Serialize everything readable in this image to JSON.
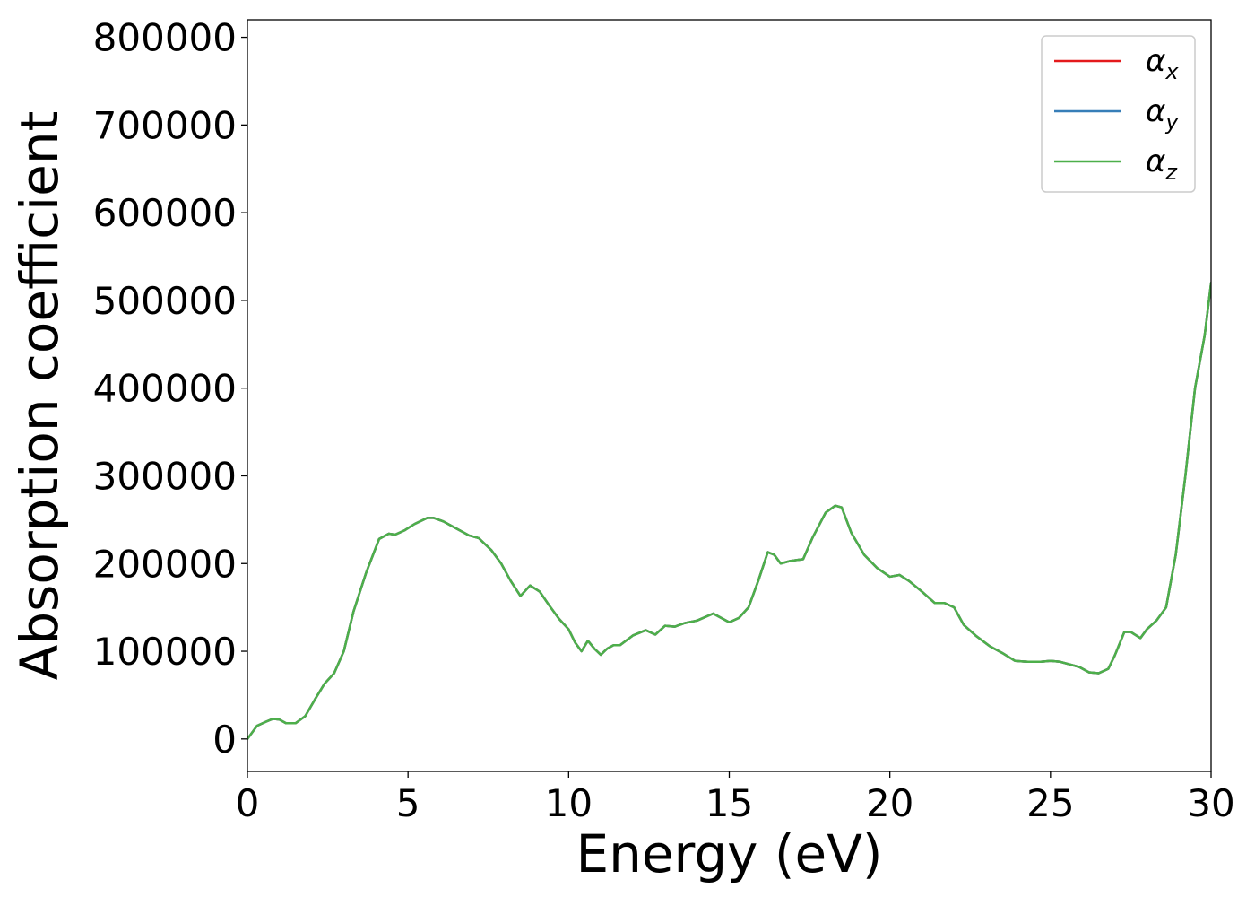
{
  "chart_data": {
    "type": "line",
    "title": "",
    "xlabel": "Energy (eV)",
    "ylabel": "Absorption coefficient",
    "xlim": [
      0,
      30
    ],
    "ylim": [
      -37000,
      820000
    ],
    "xticks": [
      0,
      5,
      10,
      15,
      20,
      25,
      30
    ],
    "yticks": [
      0,
      100000,
      200000,
      300000,
      400000,
      500000,
      600000,
      700000,
      800000
    ],
    "grid": false,
    "legend": {
      "placement": "top-right"
    },
    "series": [
      {
        "name": "α",
        "subscript": "x",
        "color": "#e41a1c",
        "x": [
          0,
          0.3,
          0.6,
          0.8,
          1.0,
          1.2,
          1.5,
          1.8,
          2.1,
          2.4,
          2.7,
          3.0,
          3.3,
          3.7,
          4.1,
          4.4,
          4.6,
          4.9,
          5.2,
          5.6,
          5.8,
          6.1,
          6.5,
          6.9,
          7.2,
          7.6,
          7.9,
          8.2,
          8.5,
          8.8,
          9.1,
          9.4,
          9.7,
          10.0,
          10.2,
          10.4,
          10.6,
          10.8,
          11.0,
          11.2,
          11.4,
          11.6,
          12.0,
          12.4,
          12.7,
          13.0,
          13.3,
          13.6,
          14.0,
          14.5,
          15.0,
          15.3,
          15.6,
          15.9,
          16.2,
          16.4,
          16.6,
          16.9,
          17.3,
          17.6,
          18.0,
          18.3,
          18.5,
          18.8,
          19.2,
          19.6,
          20.0,
          20.3,
          20.6,
          21.0,
          21.4,
          21.7,
          22.0,
          22.3,
          22.7,
          23.1,
          23.5,
          23.9,
          24.3,
          24.7,
          25.0,
          25.3,
          25.6,
          25.9,
          26.2,
          26.5,
          26.8,
          27.0,
          27.3,
          27.5,
          27.8,
          28.0,
          28.3,
          28.6,
          28.9,
          29.2,
          29.5,
          29.8,
          30.0
        ],
        "values": [
          0,
          15000,
          20000,
          23000,
          22000,
          18000,
          18000,
          26000,
          45000,
          63000,
          75000,
          100000,
          145000,
          190000,
          228000,
          234000,
          233000,
          238000,
          245000,
          252000,
          252000,
          248000,
          240000,
          232000,
          229000,
          215000,
          200000,
          180000,
          163000,
          175000,
          168000,
          152000,
          137000,
          125000,
          110000,
          100000,
          112000,
          103000,
          96000,
          103000,
          107000,
          107000,
          118000,
          124000,
          119000,
          129000,
          128000,
          132000,
          135000,
          143000,
          133000,
          138000,
          150000,
          180000,
          213000,
          210000,
          200000,
          203000,
          205000,
          230000,
          258000,
          266000,
          264000,
          235000,
          210000,
          195000,
          185000,
          187000,
          180000,
          168000,
          155000,
          155000,
          150000,
          130000,
          117000,
          106000,
          98000,
          89000,
          88000,
          88000,
          89000,
          88000,
          85000,
          82000,
          76000,
          75000,
          80000,
          95000,
          122000,
          122000,
          115000,
          125000,
          135000,
          150000,
          210000,
          300000,
          400000,
          460000,
          520000
        ]
      },
      {
        "name": "α",
        "subscript": "y",
        "color": "#377eb8",
        "x": [
          0,
          0.3,
          0.6,
          0.8,
          1.0,
          1.2,
          1.5,
          1.8,
          2.1,
          2.4,
          2.7,
          3.0,
          3.3,
          3.7,
          4.1,
          4.4,
          4.6,
          4.9,
          5.2,
          5.6,
          5.8,
          6.1,
          6.5,
          6.9,
          7.2,
          7.6,
          7.9,
          8.2,
          8.5,
          8.8,
          9.1,
          9.4,
          9.7,
          10.0,
          10.2,
          10.4,
          10.6,
          10.8,
          11.0,
          11.2,
          11.4,
          11.6,
          12.0,
          12.4,
          12.7,
          13.0,
          13.3,
          13.6,
          14.0,
          14.5,
          15.0,
          15.3,
          15.6,
          15.9,
          16.2,
          16.4,
          16.6,
          16.9,
          17.3,
          17.6,
          18.0,
          18.3,
          18.5,
          18.8,
          19.2,
          19.6,
          20.0,
          20.3,
          20.6,
          21.0,
          21.4,
          21.7,
          22.0,
          22.3,
          22.7,
          23.1,
          23.5,
          23.9,
          24.3,
          24.7,
          25.0,
          25.3,
          25.6,
          25.9,
          26.2,
          26.5,
          26.8,
          27.0,
          27.3,
          27.5,
          27.8,
          28.0,
          28.3,
          28.6,
          28.9,
          29.2,
          29.5,
          29.8,
          30.0
        ],
        "values": [
          0,
          15000,
          20000,
          23000,
          22000,
          18000,
          18000,
          26000,
          45000,
          63000,
          75000,
          100000,
          145000,
          190000,
          228000,
          234000,
          233000,
          238000,
          245000,
          252000,
          252000,
          248000,
          240000,
          232000,
          229000,
          215000,
          200000,
          180000,
          163000,
          175000,
          168000,
          152000,
          137000,
          125000,
          110000,
          100000,
          112000,
          103000,
          96000,
          103000,
          107000,
          107000,
          118000,
          124000,
          119000,
          129000,
          128000,
          132000,
          135000,
          143000,
          133000,
          138000,
          150000,
          180000,
          213000,
          210000,
          200000,
          203000,
          205000,
          230000,
          258000,
          266000,
          264000,
          235000,
          210000,
          195000,
          185000,
          187000,
          180000,
          168000,
          155000,
          155000,
          150000,
          130000,
          117000,
          106000,
          98000,
          89000,
          88000,
          88000,
          89000,
          88000,
          85000,
          82000,
          76000,
          75000,
          80000,
          95000,
          122000,
          122000,
          115000,
          125000,
          135000,
          150000,
          210000,
          300000,
          400000,
          460000,
          520000
        ]
      },
      {
        "name": "α",
        "subscript": "z",
        "color": "#4daf4a",
        "x": [
          0,
          0.3,
          0.6,
          0.8,
          1.0,
          1.2,
          1.5,
          1.8,
          2.1,
          2.4,
          2.7,
          3.0,
          3.3,
          3.7,
          4.1,
          4.4,
          4.6,
          4.9,
          5.2,
          5.6,
          5.8,
          6.1,
          6.5,
          6.9,
          7.2,
          7.6,
          7.9,
          8.2,
          8.5,
          8.8,
          9.1,
          9.4,
          9.7,
          10.0,
          10.2,
          10.4,
          10.6,
          10.8,
          11.0,
          11.2,
          11.4,
          11.6,
          12.0,
          12.4,
          12.7,
          13.0,
          13.3,
          13.6,
          14.0,
          14.5,
          15.0,
          15.3,
          15.6,
          15.9,
          16.2,
          16.4,
          16.6,
          16.9,
          17.3,
          17.6,
          18.0,
          18.3,
          18.5,
          18.8,
          19.2,
          19.6,
          20.0,
          20.3,
          20.6,
          21.0,
          21.4,
          21.7,
          22.0,
          22.3,
          22.7,
          23.1,
          23.5,
          23.9,
          24.3,
          24.7,
          25.0,
          25.3,
          25.6,
          25.9,
          26.2,
          26.5,
          26.8,
          27.0,
          27.3,
          27.5,
          27.8,
          28.0,
          28.3,
          28.6,
          28.9,
          29.2,
          29.5,
          29.8,
          30.0
        ],
        "values": [
          0,
          15000,
          20000,
          23000,
          22000,
          18000,
          18000,
          26000,
          45000,
          63000,
          75000,
          100000,
          145000,
          190000,
          228000,
          234000,
          233000,
          238000,
          245000,
          252000,
          252000,
          248000,
          240000,
          232000,
          229000,
          215000,
          200000,
          180000,
          163000,
          175000,
          168000,
          152000,
          137000,
          125000,
          110000,
          100000,
          112000,
          103000,
          96000,
          103000,
          107000,
          107000,
          118000,
          124000,
          119000,
          129000,
          128000,
          132000,
          135000,
          143000,
          133000,
          138000,
          150000,
          180000,
          213000,
          210000,
          200000,
          203000,
          205000,
          230000,
          258000,
          266000,
          264000,
          235000,
          210000,
          195000,
          185000,
          187000,
          180000,
          168000,
          155000,
          155000,
          150000,
          130000,
          117000,
          106000,
          98000,
          89000,
          88000,
          88000,
          89000,
          88000,
          85000,
          82000,
          76000,
          75000,
          80000,
          95000,
          122000,
          122000,
          115000,
          125000,
          135000,
          150000,
          210000,
          300000,
          400000,
          460000,
          520000
        ]
      }
    ]
  }
}
